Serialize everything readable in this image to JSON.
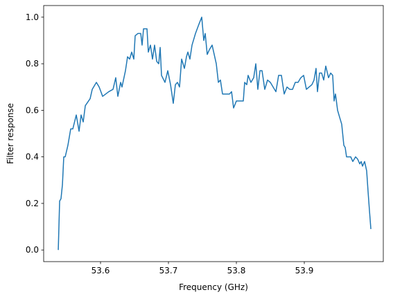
{
  "chart_data": {
    "type": "line",
    "xlabel": "Frequency (GHz)",
    "ylabel": "Filter response",
    "xlim": [
      53.5163,
      54.0163
    ],
    "xticks": [
      53.6,
      53.7,
      53.8,
      53.9
    ],
    "ylim": [
      -0.05,
      1.05
    ],
    "yticks": [
      {
        "value": 0,
        "label": "0.0"
      },
      0.2,
      0.4,
      0.6,
      0.8,
      {
        "value": 1,
        "label": "1.0"
      }
    ],
    "x": [
      53.5378,
      53.5398,
      53.5418,
      53.5439,
      53.5459,
      53.548,
      53.552,
      53.5561,
      53.5592,
      53.5643,
      53.5684,
      53.5714,
      53.5745,
      53.5776,
      53.5847,
      53.5878,
      53.5939,
      53.598,
      53.6031,
      53.6122,
      53.6184,
      53.6224,
      53.6255,
      53.6296,
      53.6316,
      53.6367,
      53.6398,
      53.6429,
      53.6459,
      53.649,
      53.651,
      53.6551,
      53.6592,
      53.6612,
      53.6633,
      53.6684,
      53.6704,
      53.6735,
      53.6765,
      53.6796,
      53.6827,
      53.6857,
      53.6878,
      53.6898,
      53.6949,
      53.699,
      53.7031,
      53.7071,
      53.7102,
      53.7133,
      53.7163,
      53.7194,
      53.7235,
      53.7265,
      53.7286,
      53.7316,
      53.7347,
      53.7398,
      53.7449,
      53.749,
      53.752,
      53.7541,
      53.7571,
      53.7602,
      53.7643,
      53.7704,
      53.7735,
      53.7765,
      53.7796,
      53.7898,
      53.7929,
      53.7959,
      53.8,
      53.8102,
      53.8122,
      53.8153,
      53.8173,
      53.8214,
      53.8255,
      53.8286,
      53.8316,
      53.8347,
      53.8378,
      53.8418,
      53.8459,
      53.85,
      53.8541,
      53.8582,
      53.8622,
      53.8663,
      53.8704,
      53.8745,
      53.8786,
      53.8827,
      53.8867,
      53.8908,
      53.8949,
      53.899,
      53.9031,
      53.9071,
      53.9112,
      53.9143,
      53.9173,
      53.9194,
      53.9224,
      53.9255,
      53.9286,
      53.9316,
      53.9357,
      53.9388,
      53.9418,
      53.9439,
      53.9459,
      53.949,
      53.952,
      53.9551,
      53.9582,
      53.9602,
      53.9622,
      53.9684,
      53.9714,
      53.9755,
      53.9786,
      53.9816,
      53.9837,
      53.9857,
      53.9888,
      53.9918,
      53.9939,
      53.9959,
      53.998
    ],
    "series": [
      {
        "name": "Filter response",
        "color": "#1f77b4",
        "values": [
          0,
          0.21,
          0.22,
          0.28,
          0.4,
          0.4,
          0.45,
          0.52,
          0.52,
          0.58,
          0.51,
          0.58,
          0.55,
          0.62,
          0.65,
          0.69,
          0.72,
          0.7,
          0.66,
          0.68,
          0.69,
          0.74,
          0.66,
          0.72,
          0.7,
          0.77,
          0.83,
          0.82,
          0.85,
          0.82,
          0.92,
          0.93,
          0.93,
          0.88,
          0.95,
          0.95,
          0.85,
          0.88,
          0.82,
          0.88,
          0.81,
          0.8,
          0.87,
          0.75,
          0.72,
          0.77,
          0.71,
          0.63,
          0.71,
          0.72,
          0.7,
          0.82,
          0.78,
          0.83,
          0.85,
          0.82,
          0.88,
          0.93,
          0.97,
          1.0,
          0.9,
          0.93,
          0.84,
          0.86,
          0.88,
          0.8,
          0.72,
          0.73,
          0.67,
          0.67,
          0.68,
          0.61,
          0.64,
          0.64,
          0.72,
          0.71,
          0.75,
          0.72,
          0.74,
          0.8,
          0.69,
          0.77,
          0.77,
          0.69,
          0.73,
          0.72,
          0.7,
          0.68,
          0.75,
          0.75,
          0.67,
          0.7,
          0.69,
          0.69,
          0.72,
          0.72,
          0.74,
          0.75,
          0.69,
          0.7,
          0.71,
          0.73,
          0.78,
          0.68,
          0.76,
          0.76,
          0.73,
          0.79,
          0.74,
          0.76,
          0.75,
          0.64,
          0.67,
          0.6,
          0.57,
          0.54,
          0.45,
          0.44,
          0.4,
          0.4,
          0.38,
          0.4,
          0.39,
          0.37,
          0.38,
          0.36,
          0.38,
          0.34,
          0.25,
          0.17,
          0.09
        ]
      }
    ]
  }
}
